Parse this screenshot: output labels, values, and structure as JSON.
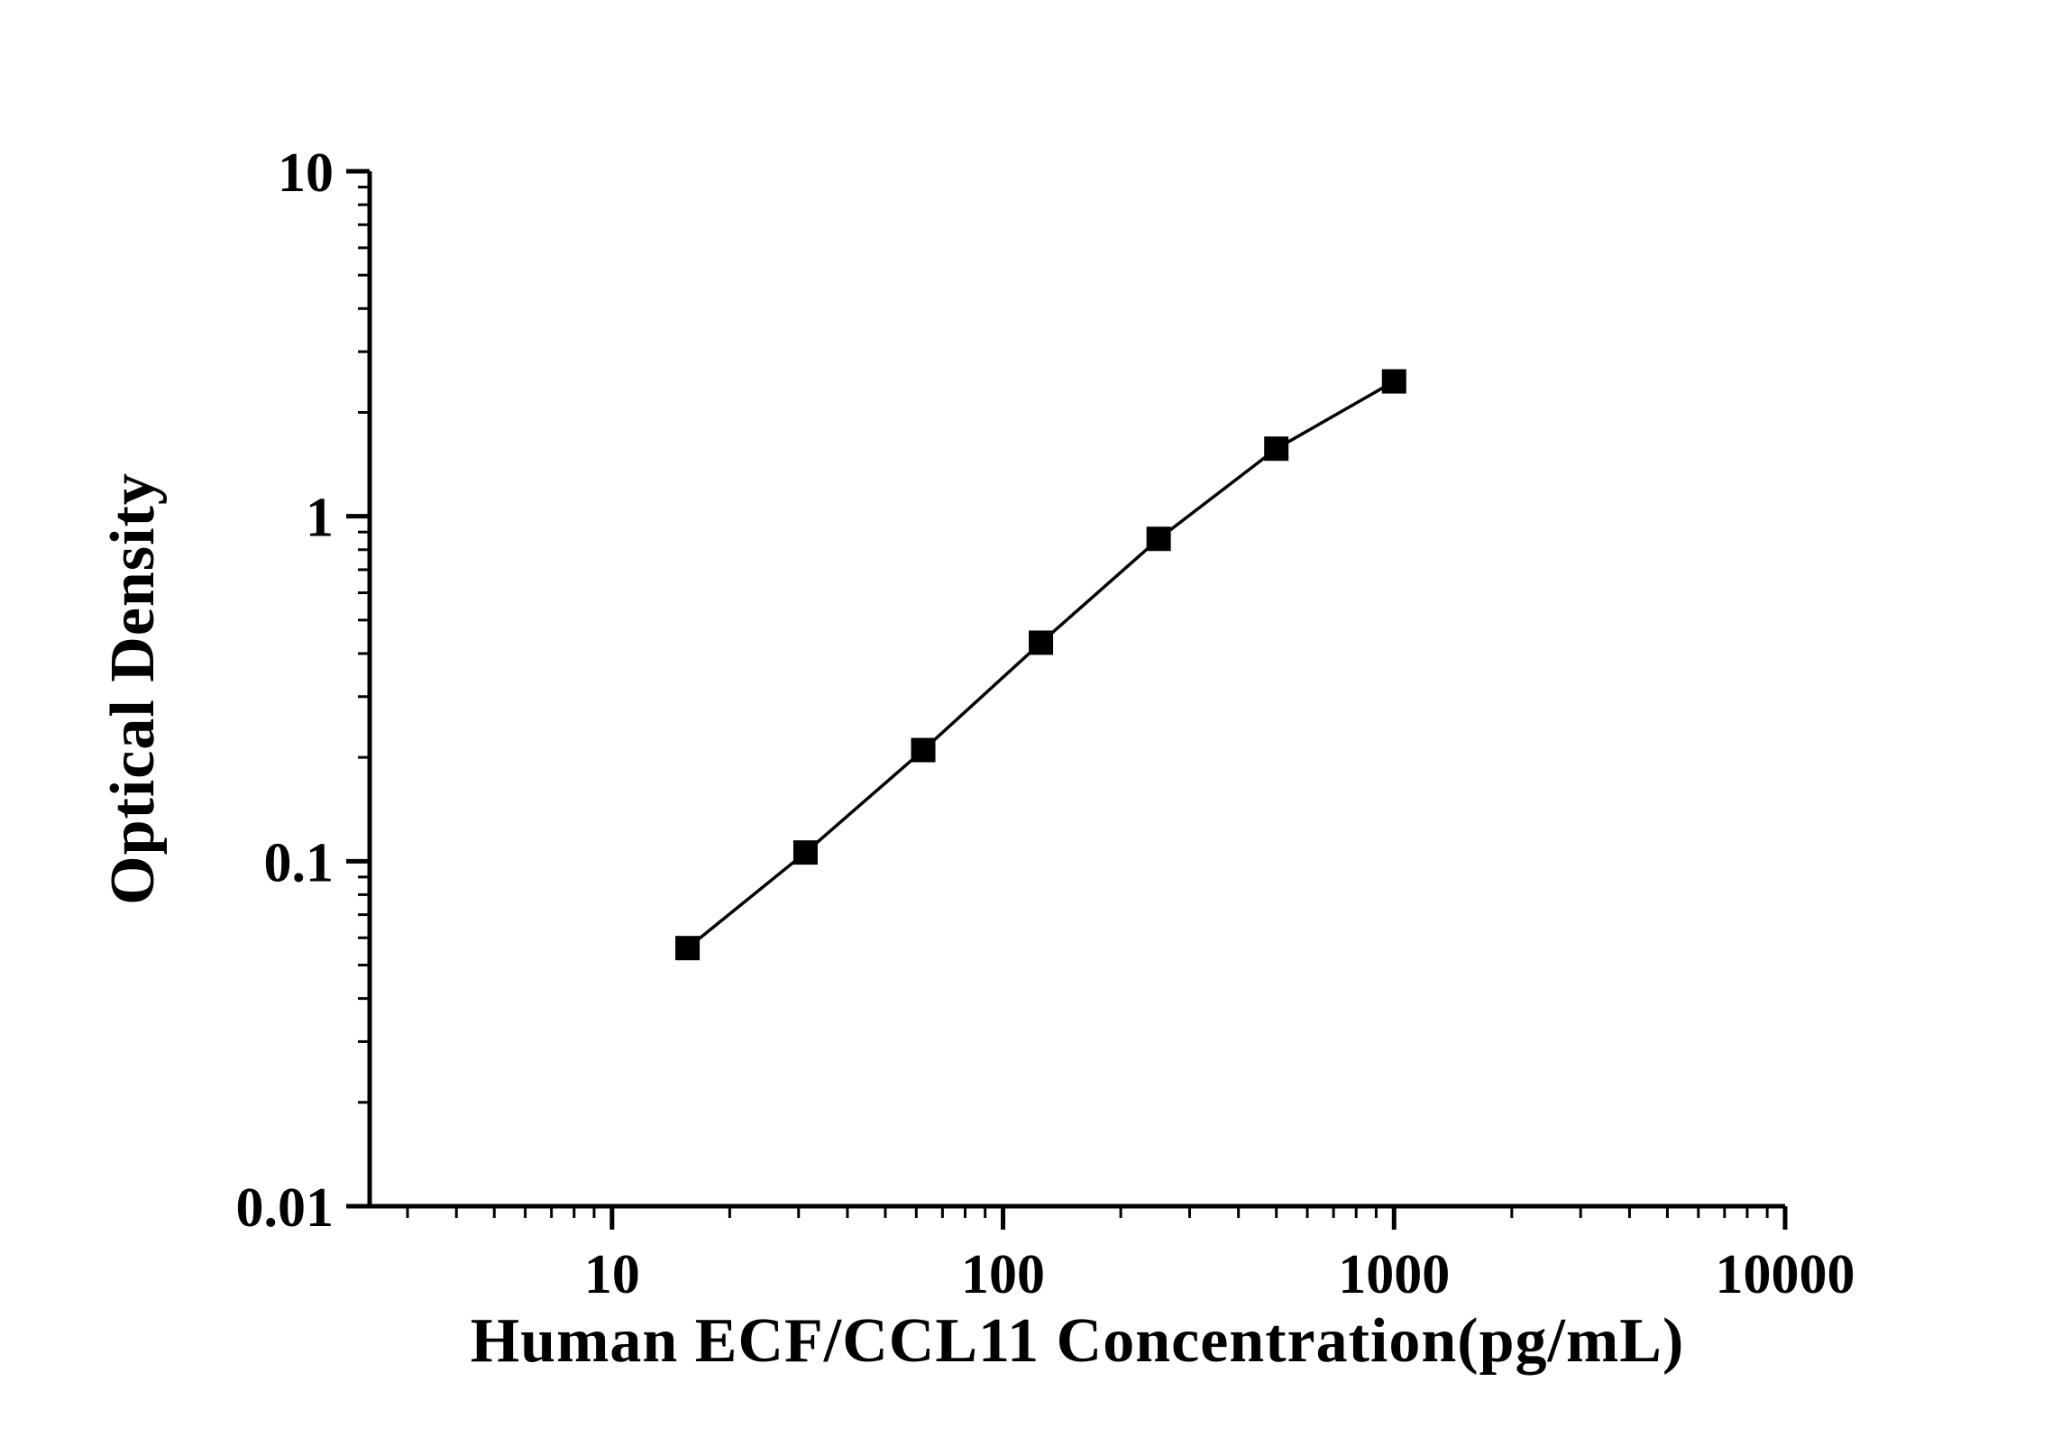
{
  "chart_data": {
    "type": "line",
    "title": "",
    "xlabel": "Human ECF/CCL11 Concentration(pg/mL)",
    "ylabel": "Optical Density",
    "x": [
      15.6,
      31.25,
      62.5,
      125,
      250,
      500,
      1000
    ],
    "series": [
      {
        "name": "standard-curve",
        "values": [
          0.056,
          0.106,
          0.21,
          0.43,
          0.86,
          1.57,
          2.46
        ]
      }
    ],
    "x_scale": "log",
    "y_scale": "log",
    "xlim": [
      2.4,
      10000
    ],
    "ylim": [
      0.01,
      10
    ],
    "x_ticks": [
      10,
      100,
      1000,
      10000
    ],
    "x_tick_labels": [
      "10",
      "100",
      "1000",
      "10000"
    ],
    "y_ticks": [
      10,
      1,
      0.1,
      0.01
    ],
    "y_tick_labels": [
      "10",
      "1",
      "0.1",
      "0.01"
    ],
    "grid": false,
    "legend_position": "none",
    "marker": "filled-square",
    "colors": {
      "line": "#000000",
      "marker": "#000000",
      "text": "#000000",
      "axis": "#000000",
      "background": "#ffffff"
    }
  }
}
